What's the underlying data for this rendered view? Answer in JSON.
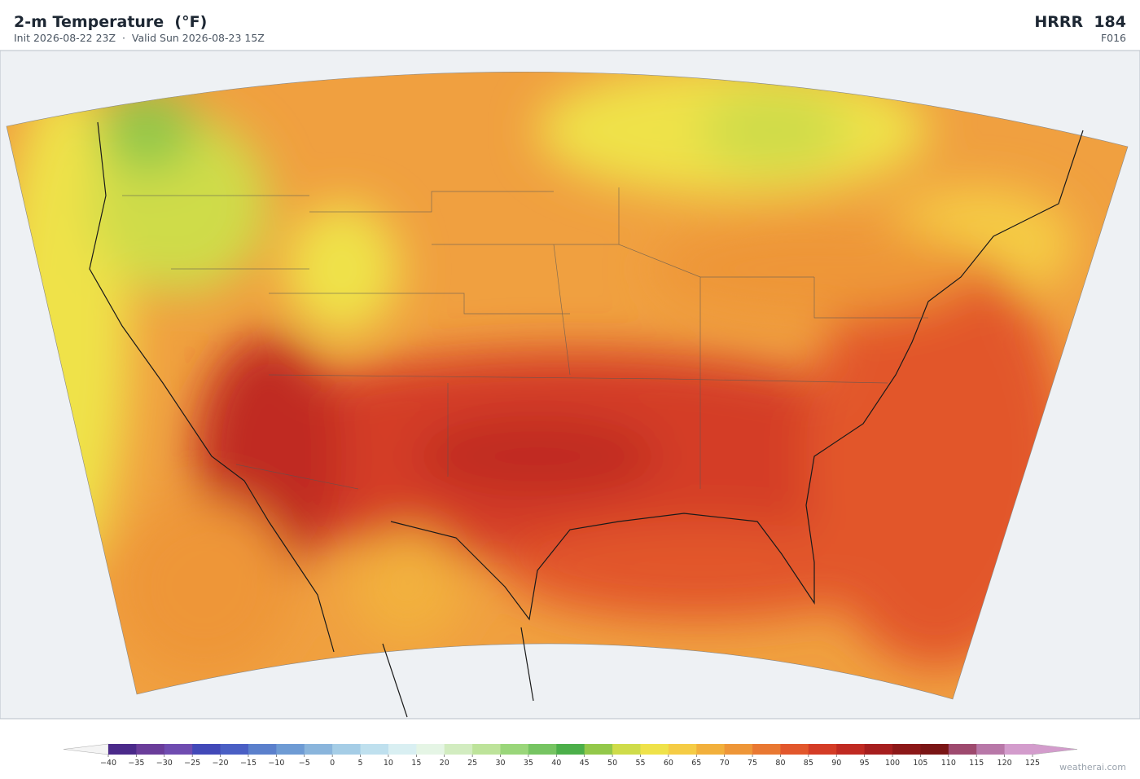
{
  "header": {
    "title": "2-m Temperature  (°F)",
    "subtitle": "Init 2026-08-22 23Z  ·  Valid Sun 2026-08-23 15Z",
    "model": "HRRR  184",
    "forecast_hour": "F016"
  },
  "colorbar": {
    "ticks": [
      {
        "value": -40,
        "label": "−40"
      },
      {
        "value": -35,
        "label": "−35"
      },
      {
        "value": -30,
        "label": "−30"
      },
      {
        "value": -25,
        "label": "−25"
      },
      {
        "value": -20,
        "label": "−20"
      },
      {
        "value": -15,
        "label": "−15"
      },
      {
        "value": -10,
        "label": "−10"
      },
      {
        "value": -5,
        "label": "−5"
      },
      0,
      5,
      10,
      15,
      20,
      25,
      30,
      35,
      40,
      45,
      50,
      55,
      60,
      65,
      70,
      75,
      80,
      85,
      90,
      95,
      100,
      105,
      110,
      115,
      120,
      125
    ],
    "colors": [
      "#4b2a8a",
      "#6a3d9a",
      "#6f4cb0",
      "#4249b8",
      "#4a5fc4",
      "#5b80cc",
      "#6e9bd4",
      "#8ab5dc",
      "#a5cde6",
      "#bfe0ee",
      "#d9eff2",
      "#e5f5e5",
      "#d2ecc0",
      "#bde39a",
      "#9ad67a",
      "#76c462",
      "#4caf4a",
      "#93c84a",
      "#cfdc4a",
      "#efe24a",
      "#f5cc45",
      "#f2b03c",
      "#ee9638",
      "#e97832",
      "#e2572c",
      "#d43c26",
      "#c02a22",
      "#a61e1e",
      "#8c1818",
      "#7a1515",
      "#9e4a6e",
      "#b878a8",
      "#d39ccc"
    ],
    "under_color": "#f4f4f4",
    "over_color": "#d39ccc"
  },
  "footer": {
    "credit": "weatherai.com"
  }
}
